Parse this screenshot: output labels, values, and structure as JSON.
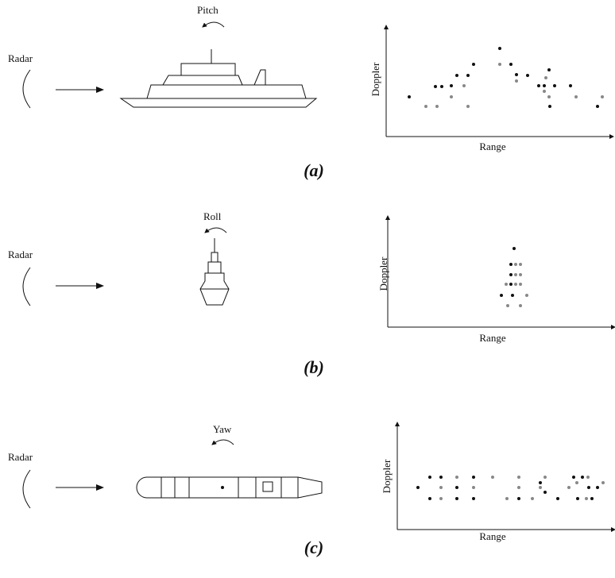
{
  "panels": [
    {
      "radar": "Radar",
      "motion": "Pitch",
      "y_label": "Doppler",
      "x_label": "Range",
      "caption": "(a)"
    },
    {
      "radar": "Radar",
      "motion": "Roll",
      "y_label": "Doppler",
      "x_label": "Range",
      "caption": "(b)"
    },
    {
      "radar": "Radar",
      "motion": "Yaw",
      "y_label": "Doppler",
      "x_label": "Range",
      "caption": "(c)"
    }
  ]
}
